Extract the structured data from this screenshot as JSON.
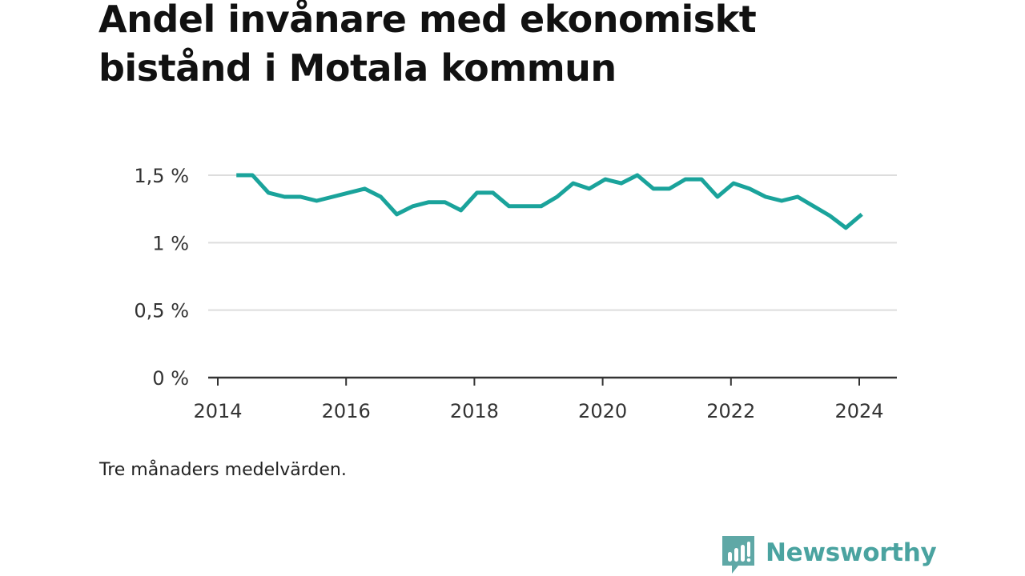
{
  "title": "Andel invånare med ekonomiskt bistånd i Motala kommun",
  "note": "Tre månaders medelvärden.",
  "brand": {
    "name": "Newsworthy",
    "icon": "newsworthy-chart-bubble-icon"
  },
  "colors": {
    "line": "#1aa39b",
    "grid": "#dddddd",
    "axis": "#333333",
    "brand": "#4aa3a0",
    "brand_icon": "#5fa8a6"
  },
  "chart_data": {
    "type": "line",
    "title": "Andel invånare med ekonomiskt bistånd i Motala kommun",
    "xlabel": "",
    "ylabel": "",
    "y_ticks": [
      {
        "value": 0,
        "label": "0 %"
      },
      {
        "value": 0.5,
        "label": "0,5 %"
      },
      {
        "value": 1,
        "label": "1 %"
      },
      {
        "value": 1.5,
        "label": "1,5 %"
      }
    ],
    "x_ticks": [
      {
        "value": 2014,
        "label": "2014"
      },
      {
        "value": 2016,
        "label": "2016"
      },
      {
        "value": 2018,
        "label": "2018"
      },
      {
        "value": 2020,
        "label": "2020"
      },
      {
        "value": 2022,
        "label": "2022"
      },
      {
        "value": 2024,
        "label": "2024"
      }
    ],
    "xlim": [
      2014,
      2024.6
    ],
    "ylim": [
      0,
      1.6
    ],
    "grid": true,
    "series": [
      {
        "x": [
          2014.29,
          2014.54,
          2014.79,
          2015.04,
          2015.29,
          2015.54,
          2015.79,
          2016.04,
          2016.29,
          2016.54,
          2016.79,
          2017.04,
          2017.29,
          2017.54,
          2017.79,
          2018.04,
          2018.29,
          2018.54,
          2018.79,
          2019.04,
          2019.29,
          2019.54,
          2019.79,
          2020.04,
          2020.29,
          2020.54,
          2020.79,
          2021.04,
          2021.29,
          2021.54,
          2021.79,
          2022.04,
          2022.29,
          2022.54,
          2022.79,
          2023.04,
          2023.29,
          2023.54,
          2023.79,
          2024.04
        ],
        "values": [
          1.5,
          1.5,
          1.37,
          1.34,
          1.34,
          1.31,
          1.34,
          1.37,
          1.4,
          1.34,
          1.21,
          1.27,
          1.3,
          1.3,
          1.24,
          1.37,
          1.37,
          1.27,
          1.27,
          1.27,
          1.34,
          1.44,
          1.4,
          1.47,
          1.44,
          1.5,
          1.4,
          1.4,
          1.47,
          1.47,
          1.34,
          1.44,
          1.4,
          1.34,
          1.31,
          1.34,
          1.27,
          1.2,
          1.11,
          1.21
        ]
      }
    ]
  }
}
